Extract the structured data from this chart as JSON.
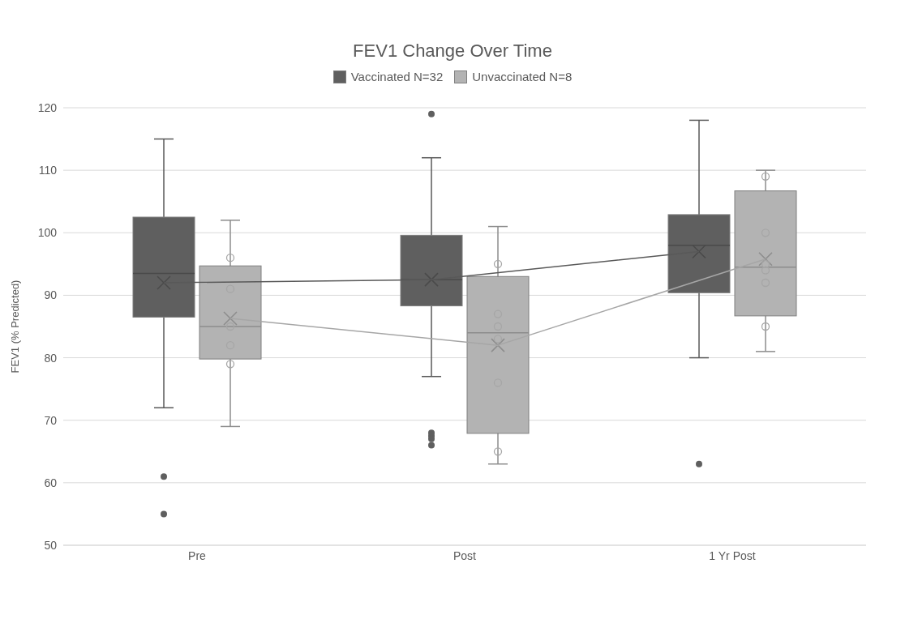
{
  "chart_data": {
    "type": "box",
    "title": "FEV1 Change Over Time",
    "ylabel": "FEV1 (% Predicted)",
    "categories": [
      "Pre",
      "Post",
      "1 Yr Post"
    ],
    "ylim": [
      50,
      120
    ],
    "yticks": [
      50,
      60,
      70,
      80,
      90,
      100,
      110,
      120
    ],
    "grid": "y",
    "legend": "top",
    "series": [
      {
        "type": "box",
        "name": "Vaccinated N=32",
        "color": "#5f5f5f",
        "boxes": [
          {
            "low": 72,
            "q1": 86.5,
            "median": 93.5,
            "q3": 102.5,
            "high": 115,
            "mean": 92,
            "outliers": [
              61,
              55
            ]
          },
          {
            "low": 77,
            "q1": 88.3,
            "median": 92.5,
            "q3": 99.6,
            "high": 112,
            "mean": 92.5,
            "outliers": [
              119,
              68,
              67.5,
              67,
              66
            ]
          },
          {
            "low": 80,
            "q1": 90.4,
            "median": 98,
            "q3": 102.9,
            "high": 118,
            "mean": 97,
            "outliers": [
              63
            ]
          }
        ]
      },
      {
        "type": "line",
        "color": "#595959",
        "values": [
          92,
          92.5,
          97
        ]
      },
      {
        "type": "box",
        "name": "Unvaccinated N=8",
        "color": "#b3b3b3",
        "boxes": [
          {
            "low": 69,
            "q1": 79.8,
            "median": 85,
            "q3": 94.7,
            "high": 102,
            "mean": 86.3
          },
          {
            "low": 63,
            "q1": 67.9,
            "median": 84,
            "q3": 93,
            "high": 101,
            "mean": 82
          },
          {
            "low": 81,
            "q1": 86.7,
            "median": 94.5,
            "q3": 106.7,
            "high": 110,
            "mean": 95.8
          }
        ]
      },
      {
        "type": "line",
        "color": "#a6a6a6",
        "values": [
          86.3,
          82,
          95.8
        ]
      },
      {
        "type": "scatter",
        "color": "#a6a6a6",
        "marker": "circle",
        "x": [
          "Pre",
          "Pre",
          "Pre",
          "Pre",
          "Pre",
          "Post",
          "Post",
          "Post",
          "Post",
          "Post",
          "Post",
          "1 Yr Post",
          "1 Yr Post",
          "1 Yr Post",
          "1 Yr Post",
          "1 Yr Post",
          "1 Yr Post"
        ],
        "values": [
          96,
          91,
          85,
          82,
          79,
          95,
          87,
          85,
          83,
          76,
          65,
          109,
          100,
          95,
          94,
          92,
          85
        ]
      }
    ]
  }
}
